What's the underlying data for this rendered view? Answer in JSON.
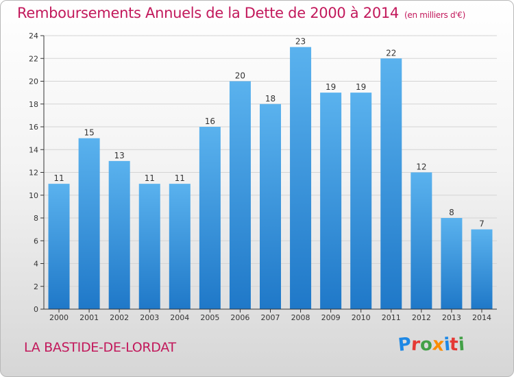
{
  "header": {
    "title": "Remboursements Annuels de la Dette de 2000 à 2014",
    "unit": "(en milliers d'€)"
  },
  "footer": {
    "commune": "LA BASTIDE-DE-LORDAT"
  },
  "logo": {
    "text": "Proxiti",
    "letter_colors": [
      "#1e88e5",
      "#e53935",
      "#43a047",
      "#fb8c00",
      "#1e88e5",
      "#e53935",
      "#43a047"
    ]
  },
  "colors": {
    "title": "#c2185b",
    "bar_top": "#5ab2ee",
    "bar_bottom": "#1f78c8",
    "axis": "#333333",
    "grid": "#d4d4d4"
  },
  "chart_data": {
    "type": "bar",
    "title": "Remboursements Annuels de la Dette de 2000 à 2014",
    "xlabel": "",
    "ylabel": "",
    "categories": [
      "2000",
      "2001",
      "2002",
      "2003",
      "2004",
      "2005",
      "2006",
      "2007",
      "2008",
      "2009",
      "2010",
      "2011",
      "2012",
      "2013",
      "2014"
    ],
    "values": [
      11,
      15,
      13,
      11,
      11,
      16,
      20,
      18,
      23,
      19,
      19,
      22,
      12,
      8,
      7
    ],
    "ylim": [
      0,
      24
    ],
    "yticks": [
      0,
      2,
      4,
      6,
      8,
      10,
      12,
      14,
      16,
      18,
      20,
      22,
      24
    ],
    "grid": true
  }
}
